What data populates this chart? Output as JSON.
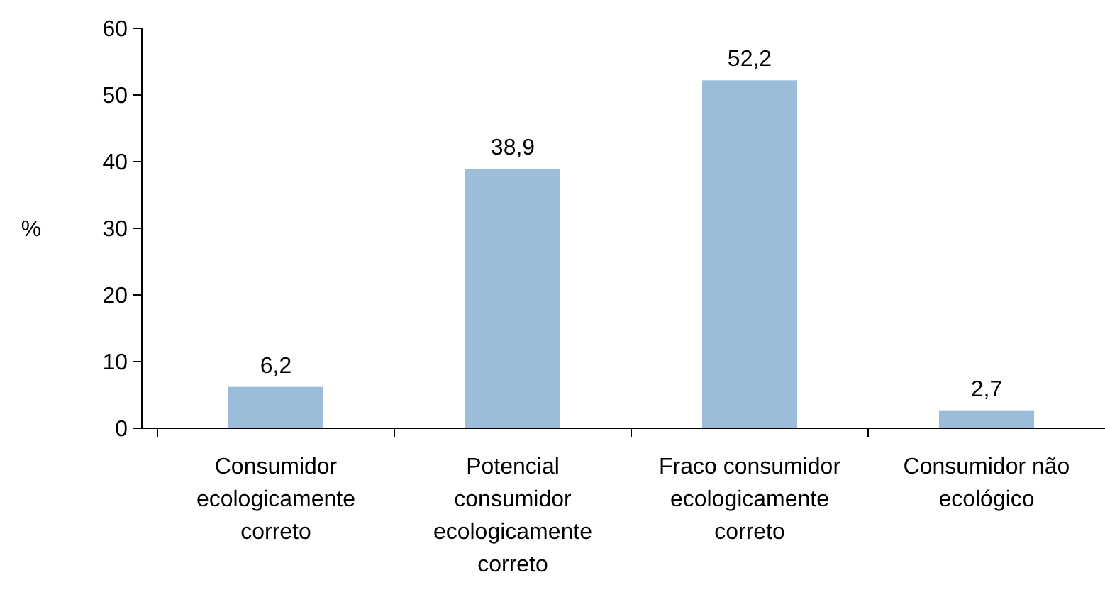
{
  "chart_data": {
    "type": "bar",
    "ylabel": "%",
    "categories": [
      "Consumidor ecologicamente correto",
      "Potencial consumidor ecologicamente correto",
      "Fraco consumidor ecologicamente correto",
      "Consumidor não ecológico"
    ],
    "values": [
      6.2,
      38.9,
      52.2,
      2.7
    ],
    "value_labels": [
      "6,2",
      "38,9",
      "52,2",
      "2,7"
    ],
    "color": "#9bbdd9",
    "ylim": [
      0,
      60
    ],
    "yticks": [
      0,
      10,
      20,
      30,
      40,
      50,
      60
    ],
    "grid": false
  }
}
